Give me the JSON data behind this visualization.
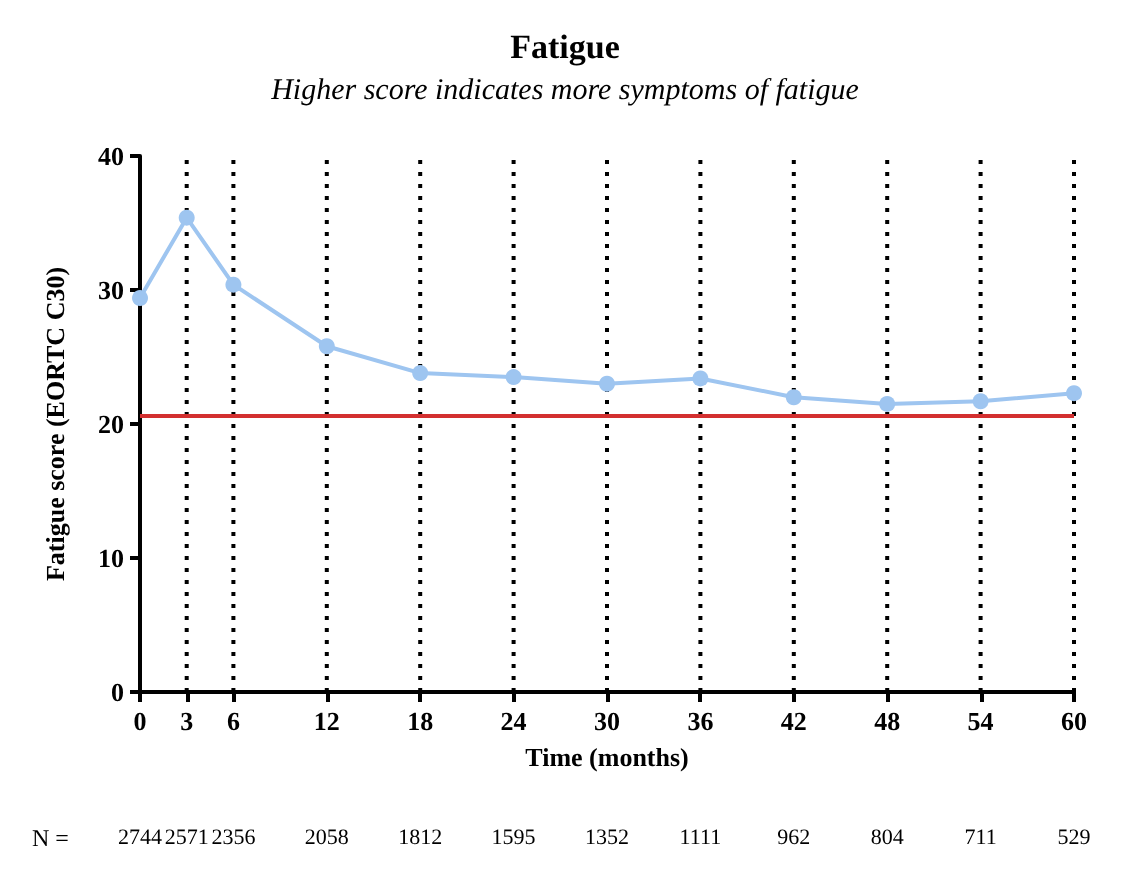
{
  "chart_data": {
    "type": "line",
    "title": "Fatigue",
    "subtitle": "Higher score indicates more symptoms of fatigue",
    "xlabel": "Time (months)",
    "ylabel": "Fatigue score (EORTC C30)",
    "x": [
      0,
      3,
      6,
      12,
      18,
      24,
      30,
      36,
      42,
      48,
      54,
      60
    ],
    "series": [
      {
        "color": "#9ec5f0",
        "values": [
          29.4,
          35.4,
          30.4,
          25.8,
          23.8,
          23.5,
          23.0,
          23.4,
          22.0,
          21.5,
          21.7,
          22.3
        ]
      }
    ],
    "xlim": [
      0,
      60
    ],
    "xticks": [
      0,
      3,
      6,
      12,
      18,
      24,
      30,
      36,
      42,
      48,
      54,
      60
    ],
    "ylim": [
      0,
      40
    ],
    "yticks": [
      0,
      10,
      20,
      30,
      40
    ],
    "grid": "x",
    "marker": "circle",
    "line_style": "solid",
    "ref_lines": [
      {
        "axis": "y",
        "value": 20.7,
        "color": "#d32f2f"
      }
    ],
    "annotations": [
      "N =",
      "2744",
      "2571",
      "2356",
      "2058",
      "1812",
      "1595",
      "1352",
      "1111",
      "962",
      "804",
      "711",
      "529"
    ]
  }
}
